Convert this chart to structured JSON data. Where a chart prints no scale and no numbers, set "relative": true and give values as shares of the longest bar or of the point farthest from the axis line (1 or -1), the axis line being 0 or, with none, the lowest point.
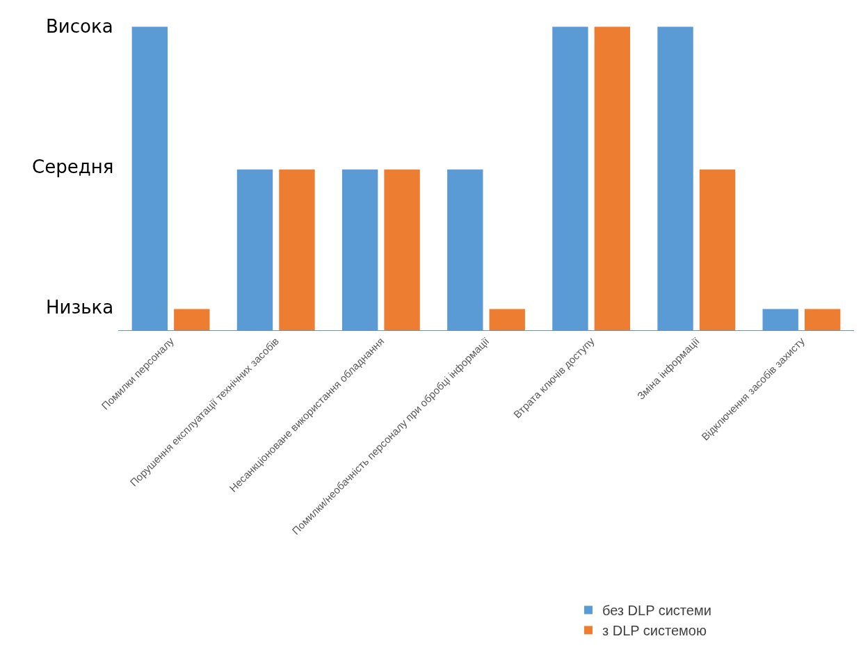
{
  "chart_data": {
    "type": "bar",
    "categories": [
      "Помилки персоналу",
      "Порушення експлуатації технічних засобів",
      "Несанкціоноване використання обладнання",
      "Помилки/необачність персоналу при обробці інформації",
      "Втрата ключів доступу",
      "Зміна інформації",
      "Відключення засобів захисту"
    ],
    "series": [
      {
        "name": "без DLP системи",
        "color": "#5b9bd5",
        "values": [
          1,
          0.53,
          0.53,
          0.53,
          1,
          1,
          0.07
        ]
      },
      {
        "name": "з DLP системою",
        "color": "#ed7d31",
        "values": [
          0.07,
          0.53,
          0.53,
          0.07,
          1,
          0.53,
          0.07
        ]
      }
    ],
    "relative": true,
    "annotations": [
      "Висока",
      "Середня",
      "Низька"
    ],
    "legend": "bottom right"
  }
}
